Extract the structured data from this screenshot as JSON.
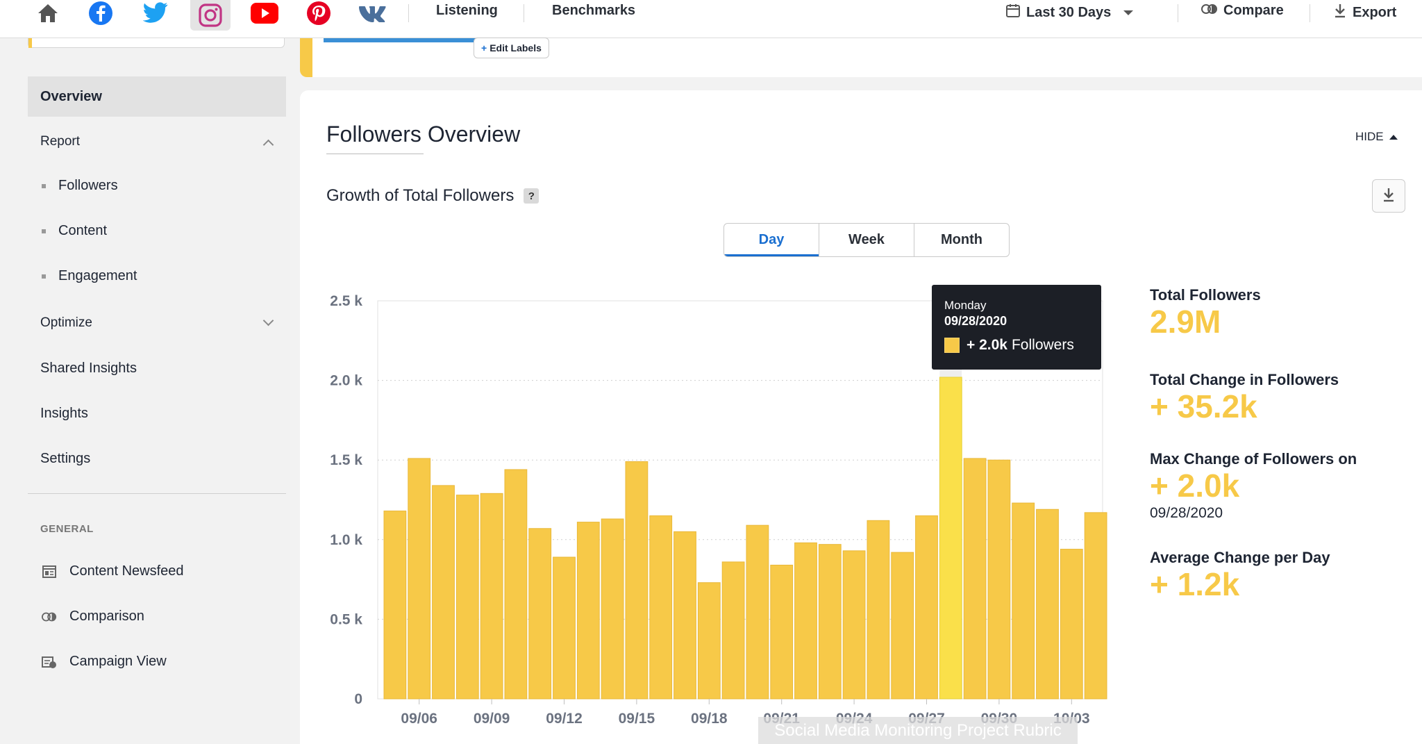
{
  "topbar": {
    "networks": [
      {
        "name": "home",
        "icon": "home-icon"
      },
      {
        "name": "facebook",
        "icon": "facebook-icon",
        "color": "#1877f2"
      },
      {
        "name": "twitter",
        "icon": "twitter-icon",
        "color": "#1da1f2"
      },
      {
        "name": "instagram",
        "icon": "instagram-icon",
        "color": "#c13584",
        "active": true
      },
      {
        "name": "youtube",
        "icon": "youtube-icon",
        "color": "#ff0000"
      },
      {
        "name": "pinterest",
        "icon": "pinterest-icon",
        "color": "#e60023"
      },
      {
        "name": "vk",
        "icon": "vk-icon",
        "color": "#4a76a8"
      }
    ],
    "nav": [
      "Listening",
      "Benchmarks"
    ],
    "date_range": "Last 30 Days",
    "compare": "Compare",
    "export": "Export"
  },
  "sidebar": {
    "overview": "Overview",
    "report": "Report",
    "report_items": [
      "Followers",
      "Content",
      "Engagement"
    ],
    "optimize": "Optimize",
    "shared_insights": "Shared Insights",
    "insights": "Insights",
    "settings": "Settings",
    "general_heading": "GENERAL",
    "general_items": [
      "Content Newsfeed",
      "Comparison",
      "Campaign View"
    ]
  },
  "upper": {
    "edit_labels": "Edit Labels"
  },
  "card": {
    "title": "Followers Overview",
    "hide": "HIDE",
    "subtitle": "Growth of Total Followers",
    "help": "?",
    "periods": [
      "Day",
      "Week",
      "Month"
    ],
    "active_period": "Day"
  },
  "tooltip": {
    "day": "Monday",
    "date": "09/28/2020",
    "value": "+ 2.0k",
    "label": "Followers"
  },
  "stats": {
    "total_label": "Total Followers",
    "total_value": "2.9M",
    "change_label": "Total Change in Followers",
    "change_value": "+ 35.2k",
    "max_label": "Max Change of Followers on",
    "max_value": "+ 2.0k",
    "max_date": "09/28/2020",
    "avg_label": "Average Change per Day",
    "avg_value": "+ 1.2k"
  },
  "watermark": "Social Media Monitoring Project  Rubric",
  "colors": {
    "bar": "#f7c948",
    "bar_highlight": "#fae04a",
    "accent_blue": "#1a6fd0"
  },
  "chart_data": {
    "type": "bar",
    "ylim": [
      0,
      2500
    ],
    "ytick_labels": [
      "0",
      "0.5 k",
      "1.0 k",
      "1.5 k",
      "2.0 k",
      "2.5 k"
    ],
    "ytick_values": [
      0,
      500,
      1000,
      1500,
      2000,
      2500
    ],
    "xtick_labels": [
      "09/06",
      "09/09",
      "09/12",
      "09/15",
      "09/18",
      "09/21",
      "09/24",
      "09/27",
      "09/30",
      "10/03"
    ],
    "xtick_bar_indices": [
      1,
      4,
      7,
      10,
      13,
      16,
      19,
      22,
      25,
      28
    ],
    "series": [
      {
        "values": [
          1180,
          1510,
          1340,
          1280,
          1290,
          1440,
          1070,
          890,
          1110,
          1130,
          1490,
          1150,
          1050,
          730,
          860,
          1090,
          840,
          980,
          970,
          930,
          1120,
          920,
          1150,
          2020,
          1510,
          1500,
          1230,
          1190,
          940,
          1170
        ]
      }
    ],
    "highlight_index": 23,
    "grid": "dotted-horizontal"
  }
}
